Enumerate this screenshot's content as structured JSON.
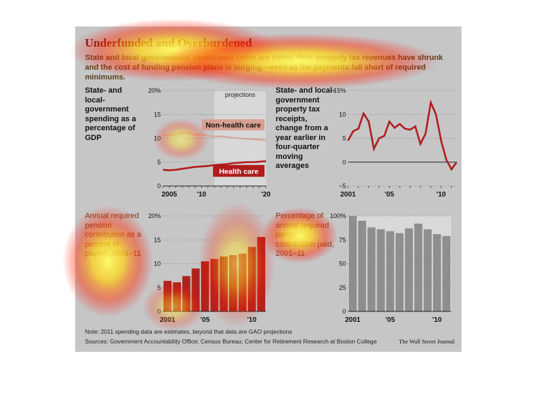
{
  "header": {
    "title": "Underfunded and Overburdened",
    "subtitle": "State and local governments' health-care costs are rising, their property tax revenues have shrunk and the cost of funding pension plans is surging—even as the payments fall short of required minimums."
  },
  "footer": {
    "note": "Note: 2011 spending data are estimates, beyond that data are GAO projections",
    "sources": "Sources: Government Accountability Office; Census Bureau; Center for Retirement Research at Boston College",
    "credit": "The Wall Street Journal"
  },
  "colors": {
    "panel_bg": "#c6c6c6",
    "health_line": "#b01c1c",
    "nonhealth_line": "#d7a090",
    "bar_red": "#b2221c",
    "bar_gray": "#8e8e8e",
    "projection_shade": "#d8d8d8",
    "heat_overlay": "yellow-red"
  },
  "chart_data": [
    {
      "type": "line",
      "panel": "spending",
      "label": "State- and local-government spending as a percentage of GDP",
      "projection_label": "projections",
      "projection_start": 2012,
      "x": [
        2004,
        2005,
        2006,
        2007,
        2008,
        2009,
        2010,
        2011,
        2012,
        2013,
        2014,
        2015,
        2016,
        2017,
        2018,
        2019,
        2020
      ],
      "series": [
        {
          "name": "Non-health care",
          "values": [
            10.6,
            10.6,
            10.8,
            11.2,
            11.1,
            10.7,
            10.8,
            10.5,
            10.4,
            10.4,
            10.3,
            10.1,
            10.0,
            9.9,
            9.8,
            9.7,
            9.6
          ]
        },
        {
          "name": "Health care",
          "values": [
            3.4,
            3.3,
            3.4,
            3.6,
            3.8,
            4.0,
            4.1,
            4.2,
            4.4,
            4.5,
            4.6,
            4.8,
            4.9,
            5.0,
            5.0,
            5.1,
            5.2
          ]
        }
      ],
      "ylim": [
        0,
        20
      ],
      "yticks": [
        0,
        5,
        10,
        15,
        20
      ],
      "ytick_labels": [
        "0",
        "5",
        "10",
        "15",
        "20%"
      ],
      "xticks": [
        2005,
        2010,
        2020
      ],
      "xtick_labels": [
        "2005",
        "'10",
        "'20"
      ]
    },
    {
      "type": "line",
      "panel": "property_tax",
      "label": "State- and local-government property tax receipts, change from a year earlier in four-quarter moving averages",
      "x": [
        2001,
        2001.5,
        2002,
        2002.5,
        2003,
        2003.5,
        2004,
        2004.5,
        2005,
        2005.5,
        2006,
        2006.5,
        2007,
        2007.5,
        2008,
        2008.5,
        2009,
        2009.5,
        2010,
        2010.5,
        2011,
        2011.5
      ],
      "series": [
        {
          "name": "",
          "values": [
            4.5,
            6.5,
            7.0,
            10.2,
            8.5,
            2.8,
            5.0,
            5.5,
            8.5,
            7.2,
            8.0,
            7.0,
            6.8,
            7.5,
            3.8,
            6.0,
            12.5,
            10.0,
            4.5,
            0.5,
            -1.5,
            0.0
          ]
        }
      ],
      "ylim": [
        -5,
        15
      ],
      "yticks": [
        -5,
        0,
        5,
        10,
        15
      ],
      "ytick_labels": [
        "−5",
        "0",
        "5",
        "10",
        "15%"
      ],
      "xticks": [
        2001,
        2005,
        2010
      ],
      "xtick_labels": [
        "2001",
        "'05",
        "'10"
      ]
    },
    {
      "type": "bar",
      "panel": "pension_required",
      "label": "Annual required pension contribution as a percent of payroll, 2001–11",
      "categories": [
        "2001",
        "2002",
        "2003",
        "2004",
        "2005",
        "2006",
        "2007",
        "2008",
        "2009",
        "2010",
        "2011"
      ],
      "values": [
        6.4,
        6.1,
        7.4,
        9.0,
        10.5,
        11.0,
        11.5,
        11.8,
        12.1,
        13.5,
        15.6
      ],
      "ylim": [
        0,
        20
      ],
      "yticks": [
        0,
        5,
        10,
        15,
        20
      ],
      "ytick_labels": [
        "0",
        "5",
        "10",
        "15",
        "20%"
      ],
      "xtick_labels": [
        "2001",
        "'05",
        "'10"
      ]
    },
    {
      "type": "bar",
      "panel": "pension_paid",
      "label": "Percentage of annual required pension contribution paid, 2001–11",
      "categories": [
        "2001",
        "2002",
        "2003",
        "2004",
        "2005",
        "2006",
        "2007",
        "2008",
        "2009",
        "2010",
        "2011"
      ],
      "values": [
        100,
        95,
        88,
        86,
        84,
        82,
        87,
        92,
        86,
        81,
        79
      ],
      "ylim": [
        0,
        100
      ],
      "yticks": [
        0,
        25,
        50,
        75,
        100
      ],
      "ytick_labels": [
        "0",
        "25",
        "50",
        "75",
        "100%"
      ],
      "xtick_labels": [
        "2001",
        "'05",
        "'10"
      ]
    }
  ]
}
